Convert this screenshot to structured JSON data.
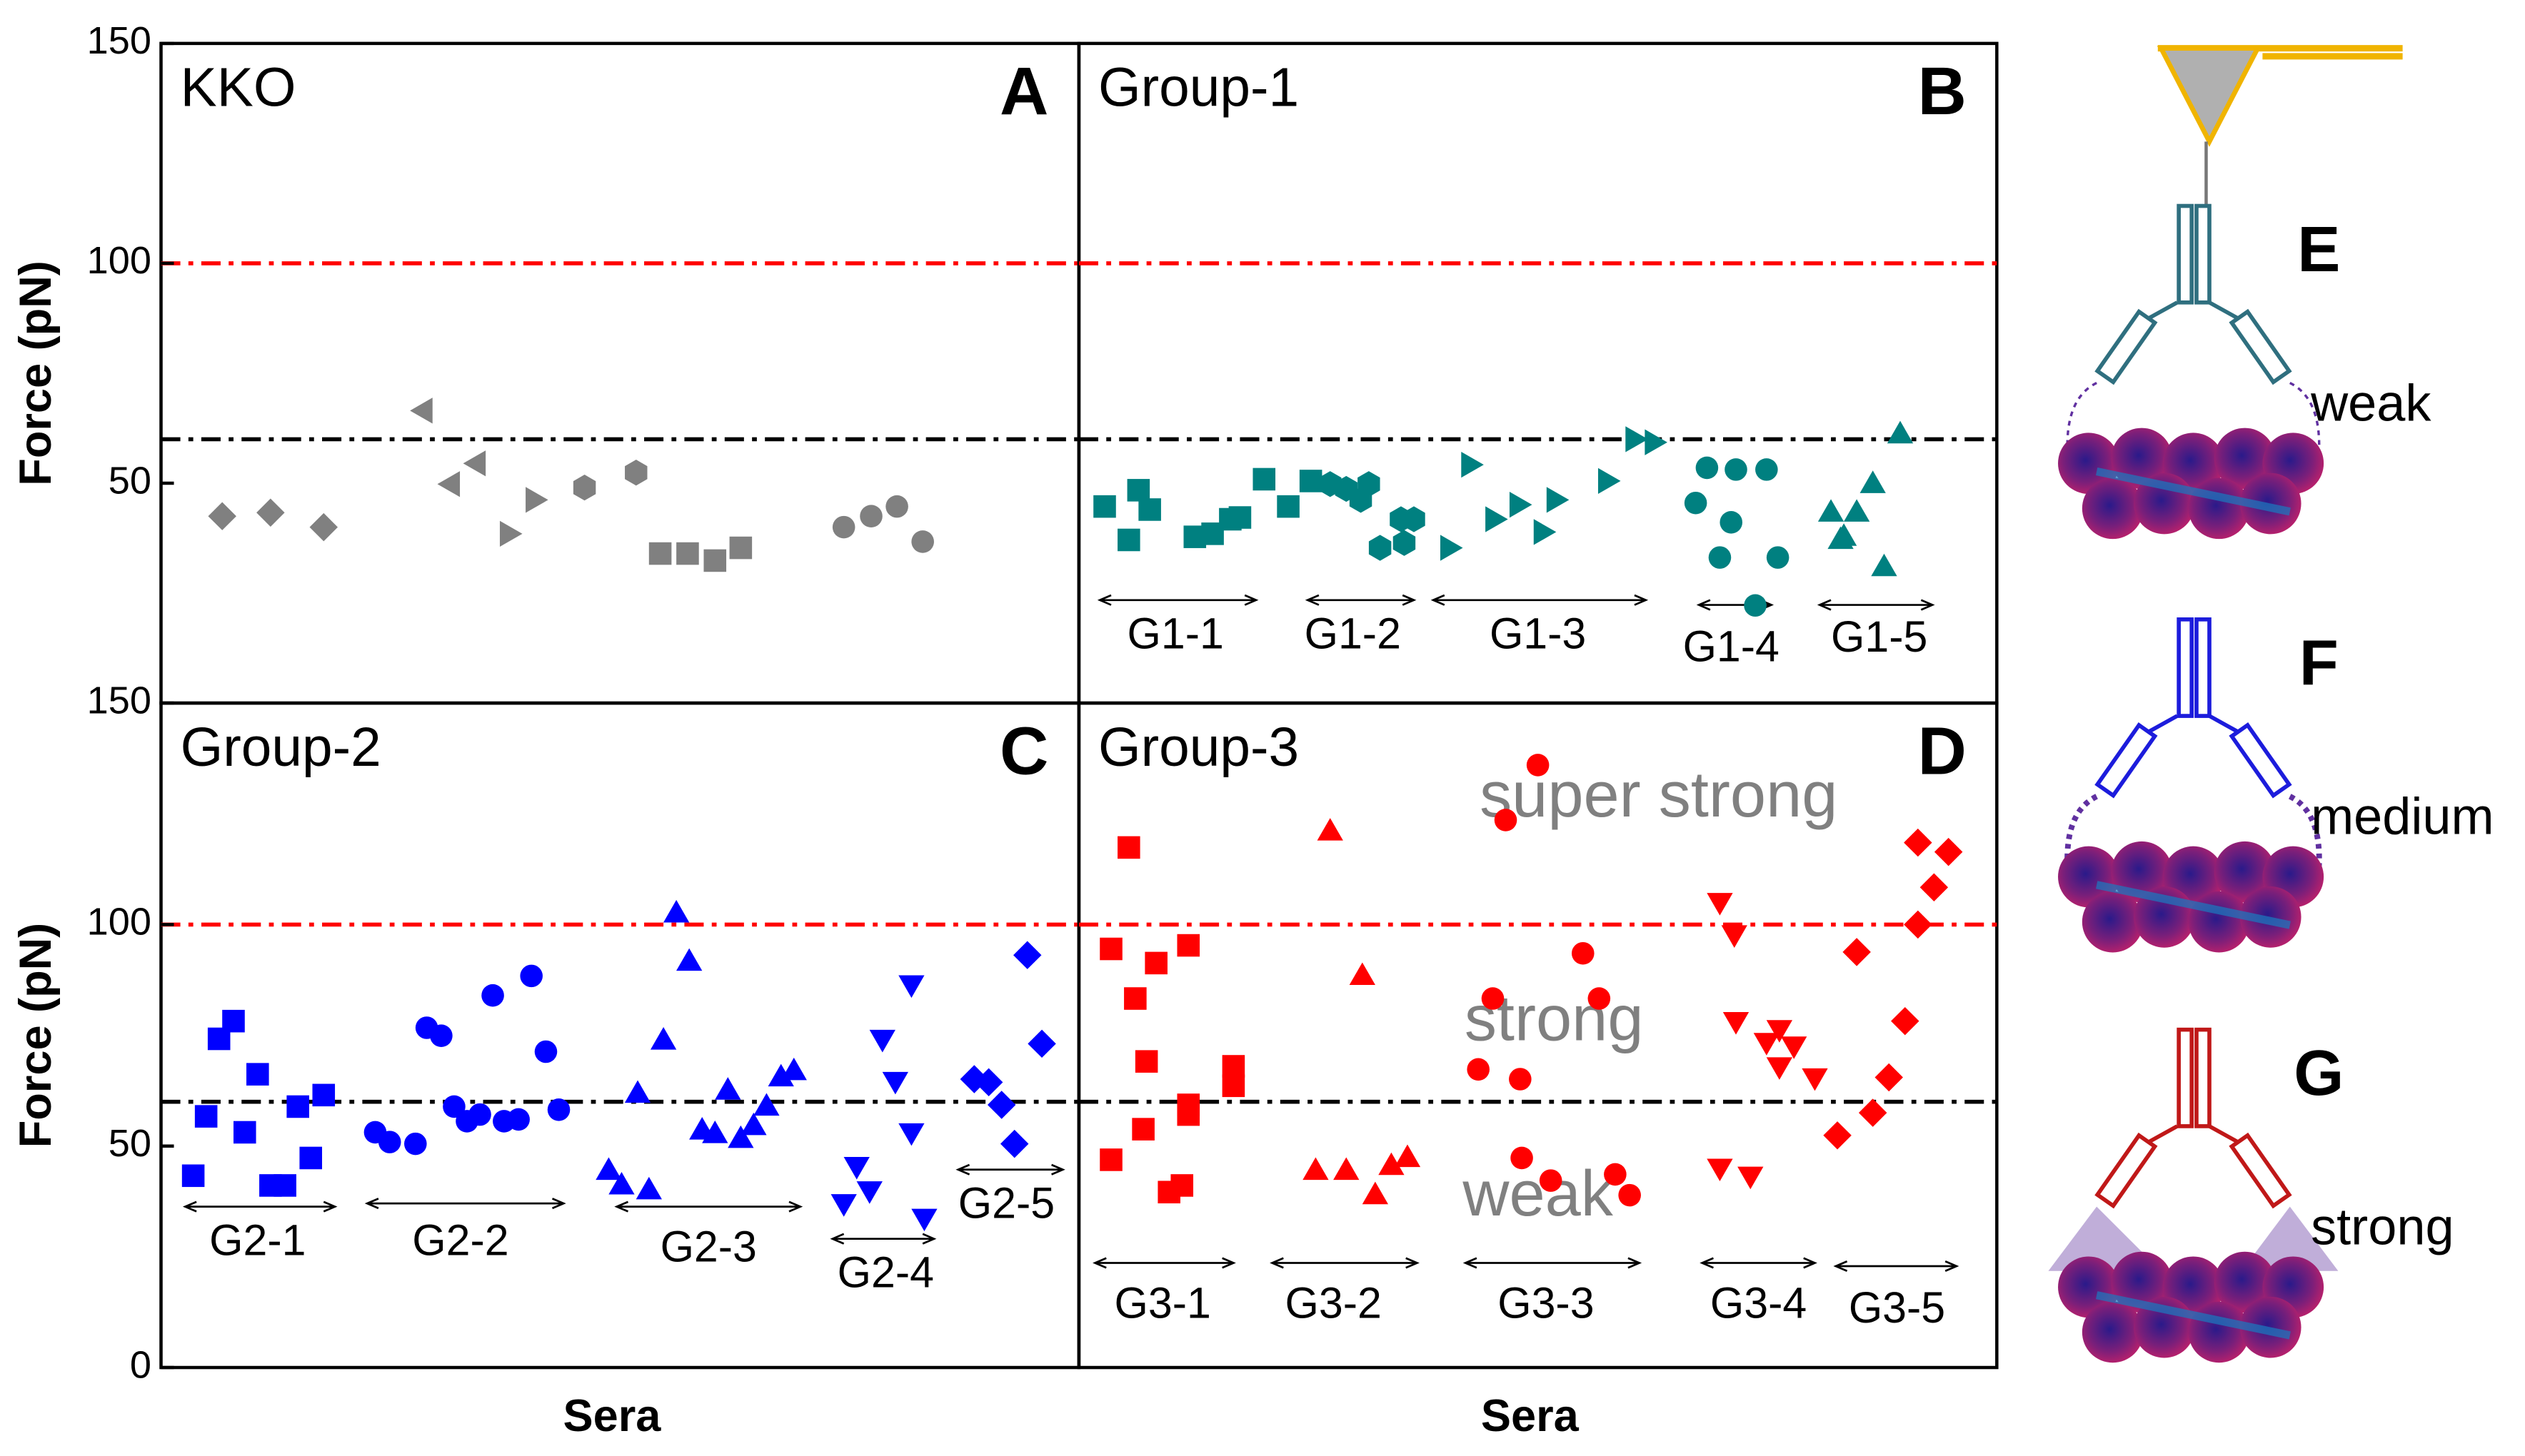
{
  "chart_data": [
    {
      "type": "scatter",
      "title": "KKO",
      "panel_label": "A",
      "ylabel": "Force (pN)",
      "ylim": [
        0,
        150
      ],
      "yticks": [
        50,
        100,
        150
      ],
      "xlim": [
        0,
        570
      ],
      "reference_lines": [
        {
          "value": 100,
          "color": "#ff0000"
        },
        {
          "value": 60,
          "color": "#000000"
        }
      ],
      "series": [
        {
          "marker": "diamond",
          "color": "#808080",
          "x": [
            38,
            68,
            101
          ],
          "values": [
            42.5,
            43.3,
            40
          ]
        },
        {
          "marker": "triangle-left",
          "color": "#808080",
          "x": [
            163,
            180,
            196
          ],
          "values": [
            66.5,
            49.8,
            54.5
          ]
        },
        {
          "marker": "triangle-right",
          "color": "#808080",
          "x": [
            216,
            232
          ],
          "values": [
            38.5,
            46.2
          ]
        },
        {
          "marker": "hexagon",
          "color": "#808080",
          "x": [
            263,
            295
          ],
          "values": [
            49,
            52.4
          ]
        },
        {
          "marker": "square",
          "color": "#808080",
          "x": [
            310,
            327,
            344,
            360
          ],
          "values": [
            34,
            34,
            32.4,
            35.3
          ]
        },
        {
          "marker": "circle",
          "color": "#808080",
          "x": [
            424,
            441,
            457,
            473
          ],
          "values": [
            40,
            42.5,
            44.7,
            36.7
          ]
        }
      ]
    },
    {
      "type": "scatter",
      "title": "Group-1",
      "panel_label": "B",
      "ylim": [
        0,
        150
      ],
      "xlim": [
        0,
        570
      ],
      "reference_lines": [
        {
          "value": 100,
          "color": "#ff0000"
        },
        {
          "value": 60,
          "color": "#000000"
        }
      ],
      "groups": [
        "G1-1",
        "G1-2",
        "G1-3",
        "G1-4",
        "G1-5"
      ],
      "series": [
        {
          "marker": "square",
          "color": "#008080",
          "x": [
            16,
            31,
            37,
            44,
            72,
            83,
            94,
            100,
            115,
            130,
            144
          ],
          "values": [
            44.7,
            37.1,
            48.4,
            44,
            37.8,
            38.5,
            41.8,
            42.2,
            50.9,
            44.7,
            50.5
          ]
        },
        {
          "marker": "hexagon",
          "color": "#008080",
          "x": [
            156,
            166,
            175,
            180,
            187,
            200,
            202,
            208
          ],
          "values": [
            49.8,
            48.7,
            46.2,
            49.8,
            35.3,
            41.8,
            36.4,
            41.8
          ]
        },
        {
          "marker": "triangle-right",
          "color": "#008080",
          "x": [
            230,
            243,
            258,
            273,
            288,
            296,
            328,
            345,
            357
          ],
          "values": [
            35.3,
            54.2,
            41.8,
            45.1,
            38.9,
            46.2,
            50.5,
            60,
            59.3
          ]
        },
        {
          "marker": "circle",
          "color": "#008080",
          "x": [
            383,
            390,
            405,
            398,
            408,
            427,
            434,
            420
          ],
          "values": [
            45.5,
            53.5,
            41.1,
            33.1,
            53.1,
            53.1,
            33.1,
            22.2
          ]
        },
        {
          "marker": "triangle-up",
          "color": "#008080",
          "x": [
            467,
            473,
            475,
            483,
            493,
            500,
            510
          ],
          "values": [
            43.3,
            37.1,
            37.8,
            43.3,
            49.8,
            30.9,
            61.1
          ]
        }
      ]
    },
    {
      "type": "scatter",
      "title": "Group-2",
      "panel_label": "C",
      "ylabel": "Force (pN)",
      "xlabel": "Sera",
      "ylim": [
        0,
        150
      ],
      "yticks": [
        0,
        50,
        100,
        150
      ],
      "xlim": [
        0,
        570
      ],
      "reference_lines": [
        {
          "value": 100,
          "color": "#ff0000"
        },
        {
          "value": 60,
          "color": "#000000"
        }
      ],
      "groups": [
        "G2-1",
        "G2-2",
        "G2-3",
        "G2-4",
        "G2-5"
      ],
      "series": [
        {
          "marker": "square",
          "color": "#0000ff",
          "x": [
            20,
            28,
            36,
            45,
            52,
            60,
            68,
            77,
            85,
            93,
            101
          ],
          "values": [
            43.3,
            56.7,
            74.2,
            78.2,
            53.1,
            66.2,
            41.1,
            41.1,
            58.9,
            47.3,
            61.5
          ]
        },
        {
          "marker": "circle",
          "color": "#0000ff",
          "x": [
            133,
            142,
            158,
            165,
            174,
            182,
            190,
            198,
            206,
            213,
            222,
            230,
            239,
            247
          ],
          "values": [
            53.1,
            50.9,
            50.5,
            76.7,
            74.9,
            58.9,
            55.6,
            57.1,
            84,
            55.6,
            56,
            88.4,
            71.3,
            58.2
          ]
        },
        {
          "marker": "triangle-up",
          "color": "#0000ff",
          "x": [
            278,
            286,
            296,
            303,
            312,
            320,
            328,
            336,
            344,
            352,
            360,
            368,
            376,
            385,
            393
          ],
          "values": [
            44.4,
            41.1,
            61.8,
            40,
            73.8,
            102.5,
            91.6,
            53.5,
            52.7,
            62.5,
            51.6,
            54.5,
            58.9,
            65.5,
            66.9
          ]
        },
        {
          "marker": "triangle-down",
          "color": "#0000ff",
          "x": [
            424,
            432,
            440,
            448,
            456,
            466,
            466,
            474
          ],
          "values": [
            37.1,
            45.5,
            40,
            74.2,
            64.7,
            53.1,
            86.5,
            33.8
          ]
        },
        {
          "marker": "diamond",
          "color": "#0000ff",
          "x": [
            505,
            514,
            522,
            530,
            538,
            547
          ],
          "values": [
            65.1,
            64.4,
            59.3,
            50.5,
            93.1,
            73.1
          ]
        }
      ]
    },
    {
      "type": "scatter",
      "title": "Group-3",
      "panel_label": "D",
      "xlabel": "Sera",
      "ylim": [
        0,
        150
      ],
      "xlim": [
        0,
        570
      ],
      "reference_lines": [
        {
          "value": 100,
          "color": "#ff0000"
        },
        {
          "value": 60,
          "color": "#000000"
        }
      ],
      "annotations": [
        "super strong",
        "strong",
        "weak"
      ],
      "groups": [
        "G3-1",
        "G3-2",
        "G3-3",
        "G3-4",
        "G3-5"
      ],
      "series": [
        {
          "marker": "square",
          "color": "#ff0000",
          "x": [
            20,
            20,
            31,
            35,
            40,
            42,
            48,
            56,
            64,
            68,
            68,
            68,
            96,
            96
          ],
          "values": [
            94.5,
            46.9,
            117.4,
            83.3,
            53.8,
            69.1,
            91.3,
            39.6,
            41.1,
            57.1,
            59.3,
            95.3,
            68,
            63.6
          ]
        },
        {
          "marker": "triangle-up",
          "color": "#ff0000",
          "x": [
            147,
            156,
            166,
            176,
            184,
            194,
            204
          ],
          "values": [
            44.4,
            121,
            44.4,
            88.4,
            38.9,
            45.5,
            47.3
          ]
        },
        {
          "marker": "circle",
          "color": "#ff0000",
          "x": [
            248,
            257,
            265,
            274,
            275,
            285,
            293,
            313,
            323,
            333,
            342
          ],
          "values": [
            67.3,
            83.3,
            123.6,
            65.1,
            47.3,
            136,
            42.2,
            93.5,
            83.3,
            43.6,
            38.9
          ]
        },
        {
          "marker": "triangle-down",
          "color": "#ff0000",
          "x": [
            398,
            398,
            407,
            408,
            417,
            427,
            435,
            435,
            444,
            457
          ],
          "values": [
            105.1,
            45.1,
            97.8,
            78.2,
            43.3,
            73.5,
            76.4,
            68,
            72.7,
            65.5
          ]
        },
        {
          "marker": "diamond",
          "color": "#ff0000",
          "x": [
            471,
            483,
            493,
            503,
            513,
            521,
            521,
            531,
            540
          ],
          "values": [
            52.4,
            93.8,
            57.5,
            65.5,
            78.2,
            100,
            118.5,
            108.4,
            116.4
          ]
        }
      ]
    }
  ],
  "diagram": {
    "panels": [
      {
        "label": "E",
        "strength": "weak"
      },
      {
        "label": "F",
        "strength": "medium"
      },
      {
        "label": "G",
        "strength": "strong"
      }
    ]
  }
}
